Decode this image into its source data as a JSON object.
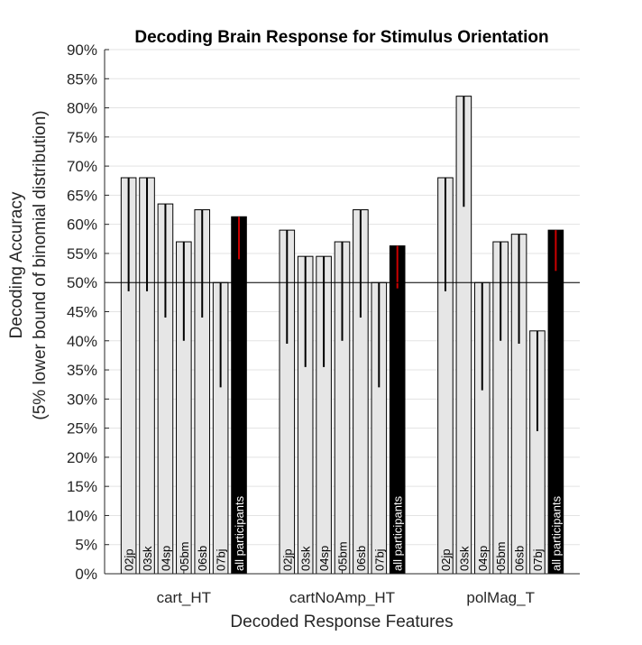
{
  "chart_data": {
    "type": "bar",
    "title": "Decoding Brain Response for Stimulus Orientation",
    "xlabel": "Decoded Response Features",
    "ylabel_lines": [
      "Decoding Accuracy",
      "(5% lower bound of binomial distribution)"
    ],
    "ylim": [
      0,
      90
    ],
    "yticks": [
      0,
      5,
      10,
      15,
      20,
      25,
      30,
      35,
      40,
      45,
      50,
      55,
      60,
      65,
      70,
      75,
      80,
      85,
      90
    ],
    "ytick_suffix": "%",
    "grid": true,
    "chance_level": 50,
    "groups": [
      {
        "name": "cart_HT",
        "bars": [
          {
            "label": "02jp",
            "value": 68,
            "lower": 48.5
          },
          {
            "label": "03sk",
            "value": 68,
            "lower": 48.5
          },
          {
            "label": "04sp",
            "value": 63.5,
            "lower": 44
          },
          {
            "label": "05bm",
            "value": 57,
            "lower": 40
          },
          {
            "label": "06sb",
            "value": 62.5,
            "lower": 44
          },
          {
            "label": "07bj",
            "value": 50,
            "lower": 32
          },
          {
            "label": "all participants",
            "value": 61.3,
            "lower": 54,
            "aggregate": true
          }
        ]
      },
      {
        "name": "cartNoAmp_HT",
        "bars": [
          {
            "label": "02jp",
            "value": 59,
            "lower": 39.5
          },
          {
            "label": "03sk",
            "value": 54.5,
            "lower": 35.5
          },
          {
            "label": "04sp",
            "value": 54.5,
            "lower": 35.5
          },
          {
            "label": "05bm",
            "value": 57,
            "lower": 40
          },
          {
            "label": "06sb",
            "value": 62.5,
            "lower": 44
          },
          {
            "label": "07bj",
            "value": 50,
            "lower": 32
          },
          {
            "label": "all participants",
            "value": 56.3,
            "lower": 49,
            "aggregate": true
          }
        ]
      },
      {
        "name": "polMag_T",
        "bars": [
          {
            "label": "02jp",
            "value": 68,
            "lower": 48.5
          },
          {
            "label": "03sk",
            "value": 82,
            "lower": 63
          },
          {
            "label": "04sp",
            "value": 50,
            "lower": 31.5
          },
          {
            "label": "05bm",
            "value": 57,
            "lower": 40
          },
          {
            "label": "06sb",
            "value": 58.3,
            "lower": 39.5
          },
          {
            "label": "07bj",
            "value": 41.7,
            "lower": 24.5
          },
          {
            "label": "all participants",
            "value": 59,
            "lower": 52,
            "aggregate": true
          }
        ]
      }
    ],
    "colors": {
      "bar_fill": "#e6e6e6",
      "aggregate_fill": "#000000",
      "error_bar": "#000000",
      "aggregate_error_bar": "#cc0000",
      "grid": "#e3e3e3",
      "axis": "#262626"
    }
  }
}
